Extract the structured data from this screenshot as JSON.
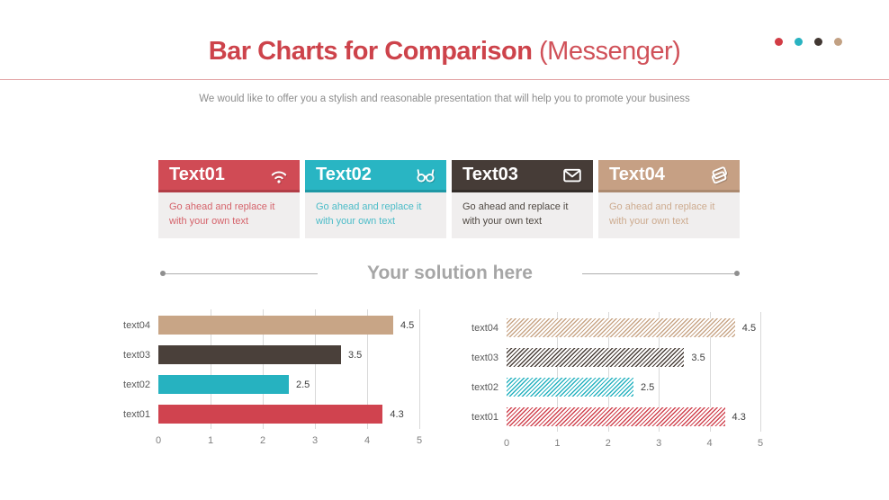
{
  "header": {
    "title_bold": "Bar Charts for Comparison",
    "title_light": "(Messenger)",
    "title_color": "#cd434b",
    "dots": [
      "#d23c45",
      "#29b3c1",
      "#423833",
      "#c2a183"
    ]
  },
  "subtitle": "We would like to offer you a stylish and reasonable presentation that will help you to promote your business",
  "cards": [
    {
      "title": "Text01",
      "icon": "wifi-icon",
      "header_color": "#d04b55",
      "shadow_color": "#b23e47",
      "text_color": "#d5636b",
      "body": "Go ahead and replace it with your own text"
    },
    {
      "title": "Text02",
      "icon": "glasses-icon",
      "header_color": "#29b5c3",
      "shadow_color": "#1f98a5",
      "text_color": "#4cbcc8",
      "body": "Go ahead and replace it with your own text"
    },
    {
      "title": "Text03",
      "icon": "envelope-icon",
      "header_color": "#463c37",
      "shadow_color": "#342d29",
      "text_color": "#4f4842",
      "body": "Go ahead and replace it with your own text"
    },
    {
      "title": "Text04",
      "icon": "cards-icon",
      "header_color": "#c6a084",
      "shadow_color": "#ac8a70",
      "text_color": "#cdab8f",
      "body": "Go ahead and replace it with your own text"
    }
  ],
  "solution": {
    "label": "Your solution here"
  },
  "chart_data": [
    {
      "type": "bar",
      "orientation": "horizontal",
      "style": "solid",
      "title": "",
      "categories": [
        "text04",
        "text03",
        "text02",
        "text01"
      ],
      "values": [
        4.5,
        3.5,
        2.5,
        4.3
      ],
      "value_labels": [
        "4.5",
        "3.5",
        "2.5",
        "4.3"
      ],
      "colors": [
        "#c8a586",
        "#4a403a",
        "#26b2c0",
        "#d0434f"
      ],
      "xlim": [
        0,
        5
      ],
      "xticks": [
        0,
        1,
        2,
        3,
        4,
        5
      ],
      "grid": true,
      "legend": false
    },
    {
      "type": "bar",
      "orientation": "horizontal",
      "style": "hatched",
      "title": "",
      "categories": [
        "text04",
        "text03",
        "text02",
        "text01"
      ],
      "values": [
        4.5,
        3.5,
        2.5,
        4.3
      ],
      "value_labels": [
        "4.5",
        "3.5",
        "2.5",
        "4.3"
      ],
      "colors": [
        "#c8a586",
        "#4a403a",
        "#26b2c0",
        "#d0434f"
      ],
      "xlim": [
        0,
        5
      ],
      "xticks": [
        0,
        1,
        2,
        3,
        4,
        5
      ],
      "grid": true,
      "legend": false
    }
  ]
}
